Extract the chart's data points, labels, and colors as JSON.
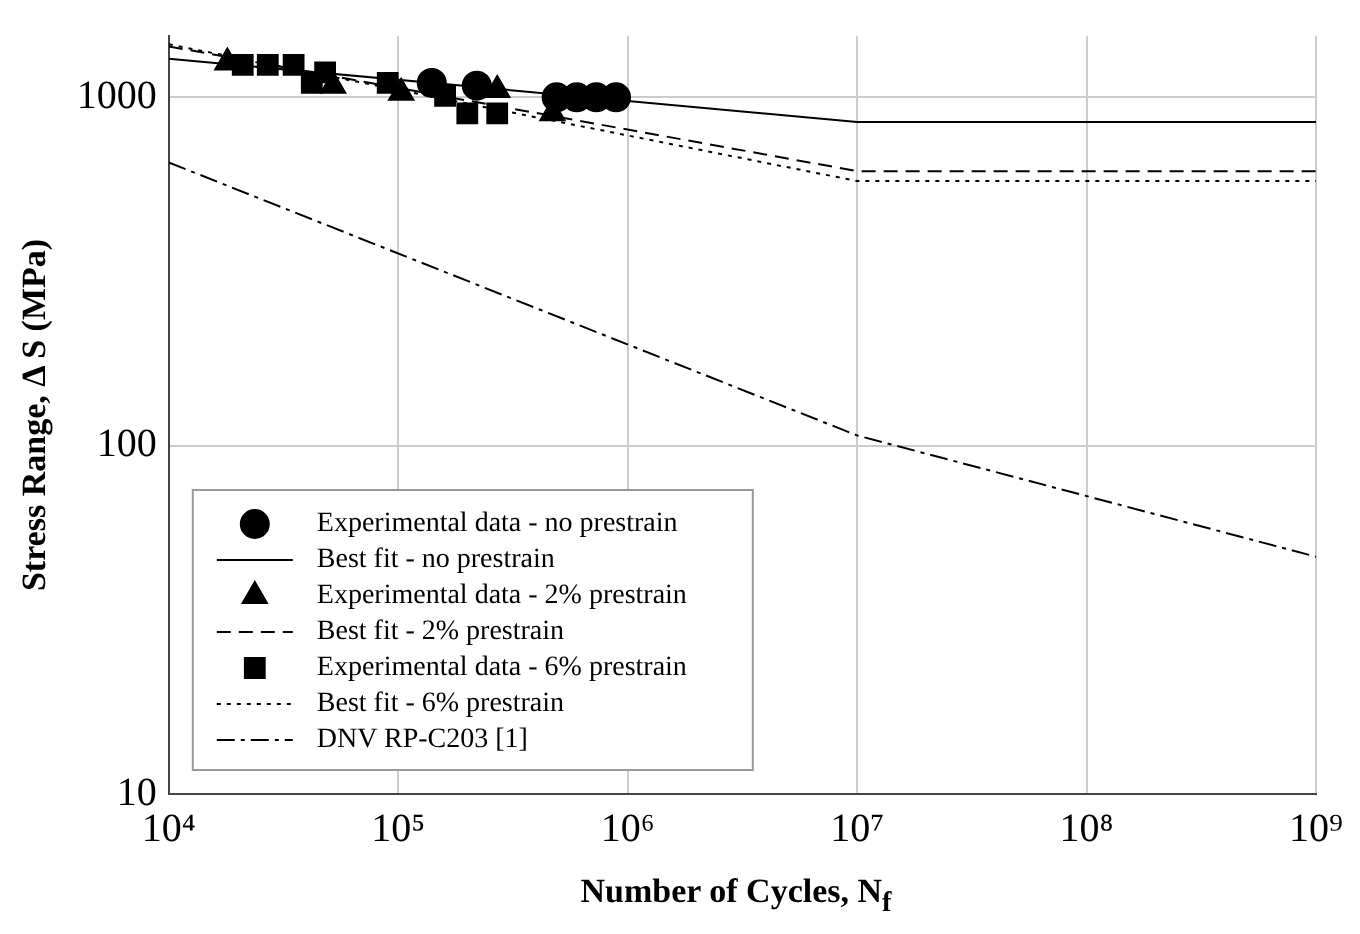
{
  "chart_data": {
    "type": "scatter",
    "xlabel": "Number of Cycles, N$_{f}$",
    "ylabel": "Stress Range, Δ S (MPa)",
    "log": "xy",
    "grid": true,
    "legend": "bottom left",
    "xlim": [
      10000,
      1000000000
    ],
    "xticks": [
      {
        "value": 10000,
        "label": "10⁴"
      },
      {
        "value": 100000,
        "label": "10⁵"
      },
      {
        "value": 1000000,
        "label": "10⁶"
      },
      {
        "value": 10000000,
        "label": "10⁷"
      },
      {
        "value": 100000000,
        "label": "10⁸"
      },
      {
        "value": 1000000000,
        "label": "10⁹"
      }
    ],
    "ylim": [
      10,
      1500
    ],
    "yticks": [
      10,
      100,
      1000
    ],
    "series": [
      {
        "name": "Experimental data - no prestrain",
        "marker": "circle",
        "color": "#000000",
        "x": [
          140000,
          220000,
          490000,
          600000,
          730000,
          890000
        ],
        "values": [
          1100,
          1080,
          1000,
          1000,
          1000,
          1000
        ]
      },
      {
        "name": "Best fit - no prestrain",
        "type": "line",
        "marker": "none",
        "line_style": "solid",
        "color": "#000000",
        "x": [
          10000,
          10000000,
          1000000000
        ],
        "values": [
          1290,
          850,
          850
        ]
      },
      {
        "name": "Experimental data - 2% prestrain",
        "marker": "triangle",
        "color": "#000000",
        "x": [
          18000,
          52000,
          103000,
          270000,
          470000
        ],
        "values": [
          1260,
          1080,
          1030,
          1050,
          900
        ]
      },
      {
        "name": "Best fit - 2% prestrain",
        "type": "line",
        "marker": "none",
        "line_style": "dashed",
        "color": "#000000",
        "x": [
          10000,
          10000000,
          1000000000
        ],
        "values": [
          1400,
          614,
          614
        ]
      },
      {
        "name": "Experimental data - 6% prestrain",
        "marker": "square",
        "color": "#000000",
        "x": [
          21000,
          27000,
          35000,
          42000,
          48000,
          90000,
          160000,
          200000,
          270000
        ],
        "values": [
          1240,
          1240,
          1240,
          1100,
          1180,
          1100,
          1010,
          900,
          900
        ]
      },
      {
        "name": "Best fit - 6% prestrain",
        "type": "line",
        "marker": "none",
        "line_style": "dotted",
        "color": "#000000",
        "x": [
          10000,
          10000000,
          1000000000
        ],
        "values": [
          1420,
          575,
          575
        ]
      },
      {
        "name": "DNV RP-C203 [1]",
        "type": "line",
        "marker": "none",
        "line_style": "dashdot",
        "color": "#000000",
        "x": [
          10000,
          10000000,
          1000000000
        ],
        "values": [
          650,
          107,
          48
        ]
      }
    ]
  }
}
